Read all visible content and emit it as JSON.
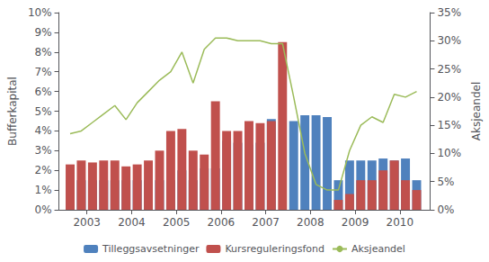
{
  "chart_data": {
    "type": "bar",
    "stacked": true,
    "grid": false,
    "legend": "bottom",
    "ylabel": "Bufferkapital",
    "y2label": "Aksjeandel",
    "x": [
      2003.0,
      2003.25,
      2003.5,
      2003.75,
      2004.0,
      2004.25,
      2004.5,
      2004.75,
      2005.0,
      2005.25,
      2005.5,
      2005.75,
      2006.0,
      2006.25,
      2006.5,
      2006.75,
      2007.0,
      2007.25,
      2007.5,
      2007.75,
      2008.0,
      2008.25,
      2008.5,
      2008.75,
      2009.0,
      2009.25,
      2009.5,
      2009.75,
      2010.0,
      2010.25,
      2010.5,
      2010.75
    ],
    "xlim": [
      2002.75,
      2011.05
    ],
    "xticks": [
      {
        "value": 2003.375,
        "label": "2003"
      },
      {
        "value": 2004.375,
        "label": "2004"
      },
      {
        "value": 2005.375,
        "label": "2005"
      },
      {
        "value": 2006.375,
        "label": "2006"
      },
      {
        "value": 2007.375,
        "label": "2007"
      },
      {
        "value": 2008.375,
        "label": "2008"
      },
      {
        "value": 2009.375,
        "label": "2009"
      },
      {
        "value": 2010.375,
        "label": "2010"
      }
    ],
    "ylim": [
      0,
      10
    ],
    "yticks": [
      {
        "value": 0,
        "label": "0%"
      },
      {
        "value": 1,
        "label": "1%"
      },
      {
        "value": 2,
        "label": "2%"
      },
      {
        "value": 3,
        "label": "3%"
      },
      {
        "value": 4,
        "label": "4%"
      },
      {
        "value": 5,
        "label": "5%"
      },
      {
        "value": 6,
        "label": "6%"
      },
      {
        "value": 7,
        "label": "7%"
      },
      {
        "value": 8,
        "label": "8%"
      },
      {
        "value": 9,
        "label": "9%"
      },
      {
        "value": 10,
        "label": "10%"
      }
    ],
    "y2lim": [
      0,
      35
    ],
    "y2ticks": [
      {
        "value": 0,
        "label": "0%"
      },
      {
        "value": 5,
        "label": "5%"
      },
      {
        "value": 10,
        "label": "10%"
      },
      {
        "value": 15,
        "label": "15%"
      },
      {
        "value": 20,
        "label": "20%"
      },
      {
        "value": 25,
        "label": "25%"
      },
      {
        "value": 30,
        "label": "30%"
      },
      {
        "value": 35,
        "label": "35%"
      }
    ],
    "series": [
      {
        "name": "Tilleggsavsetninger",
        "type": "bar",
        "color": "#4F81BD",
        "values": [
          1.5,
          1.5,
          1.5,
          1.5,
          1.5,
          1.5,
          1.5,
          1.5,
          1.5,
          1.5,
          2.0,
          1.5,
          2.1,
          2.1,
          3.5,
          3.4,
          3.3,
          3.4,
          4.6,
          0.0,
          4.5,
          4.8,
          4.8,
          4.7,
          1.5,
          2.5,
          2.5,
          2.5,
          2.6,
          2.5,
          2.6,
          1.5
        ]
      },
      {
        "name": "Kursreguleringsfond",
        "type": "bar",
        "color": "#C0504D",
        "values": [
          2.3,
          2.5,
          2.4,
          2.5,
          2.5,
          2.2,
          2.3,
          2.5,
          3.0,
          4.0,
          4.1,
          3.0,
          2.8,
          5.5,
          4.0,
          4.0,
          4.5,
          4.4,
          4.5,
          8.5,
          0.0,
          0.0,
          0.0,
          0.0,
          0.5,
          0.8,
          1.5,
          1.5,
          2.0,
          2.5,
          1.5,
          1.0
        ]
      },
      {
        "name": "Aksjeandel",
        "type": "line",
        "axis": "y2",
        "color": "#9BBB59",
        "values": [
          13.5,
          14.0,
          15.5,
          17.0,
          18.5,
          16.0,
          19.0,
          21.0,
          23.0,
          24.5,
          28.0,
          22.5,
          28.5,
          30.5,
          30.5,
          30.0,
          30.0,
          30.0,
          29.5,
          29.5,
          20.0,
          10.0,
          4.5,
          3.5,
          3.5,
          10.5,
          15.0,
          16.5,
          15.5,
          20.5,
          20.0,
          21.0
        ]
      }
    ]
  }
}
